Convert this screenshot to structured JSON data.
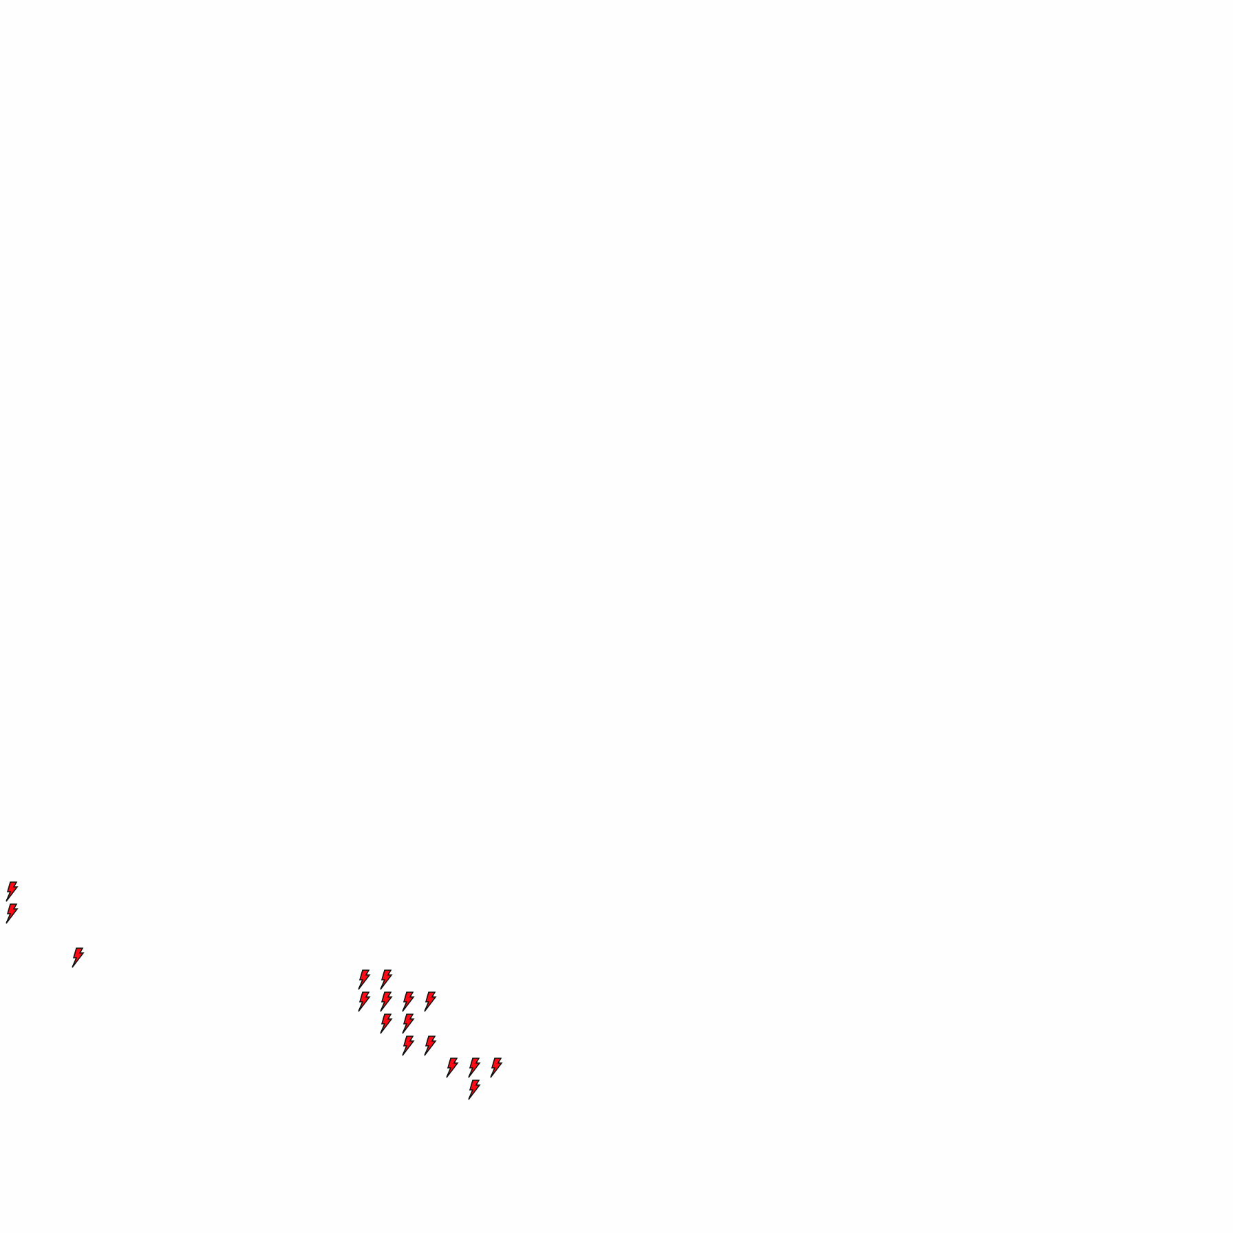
{
  "map": {
    "layer": "lightning",
    "marker_icon": "lightning-bolt-icon",
    "marker_fill": "#ff0a14",
    "marker_stroke": "#111111",
    "marker_count": 18
  }
}
